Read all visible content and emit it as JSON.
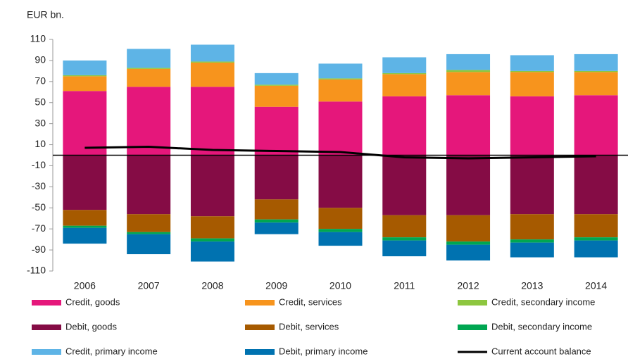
{
  "chart_data": {
    "type": "bar",
    "stacked": true,
    "y_axis_label": "EUR bn.",
    "categories": [
      "2006",
      "2007",
      "2008",
      "2009",
      "2010",
      "2011",
      "2012",
      "2013",
      "2014"
    ],
    "ylim": [
      -110,
      110
    ],
    "yticks": [
      110,
      90,
      70,
      50,
      30,
      10,
      -10,
      -30,
      -50,
      -70,
      -90,
      -110
    ],
    "grid": false,
    "series": [
      {
        "name": "Credit, goods",
        "color": "#e5177b",
        "values": [
          61,
          65,
          65,
          46,
          51,
          56,
          57,
          56,
          57
        ]
      },
      {
        "name": "Credit, services",
        "color": "#f7941d",
        "values": [
          14,
          17,
          23,
          20,
          21,
          21,
          22,
          23,
          22
        ]
      },
      {
        "name": "Credit, secondary income",
        "color": "#8dc63f",
        "values": [
          1,
          1,
          1,
          1,
          1,
          1,
          2,
          1,
          1
        ]
      },
      {
        "name": "Debit, goods",
        "color": "#850c45",
        "values": [
          -52,
          -56,
          -58,
          -42,
          -50,
          -57,
          -57,
          -56,
          -56
        ]
      },
      {
        "name": "Debit, services",
        "color": "#a65a00",
        "values": [
          -15,
          -17,
          -21,
          -19,
          -20,
          -21,
          -25,
          -24,
          -22
        ]
      },
      {
        "name": "Debit, secondary income",
        "color": "#00a651",
        "values": [
          -2,
          -2,
          -3,
          -3,
          -3,
          -3,
          -3,
          -3,
          -3
        ]
      },
      {
        "name": "Credit, primary income",
        "color": "#5eb4e6",
        "values": [
          14,
          18,
          16,
          11,
          14,
          15,
          15,
          15,
          16
        ]
      },
      {
        "name": "Debit, primary income",
        "color": "#0072b0",
        "values": [
          -15,
          -19,
          -19,
          -11,
          -13,
          -15,
          -15,
          -14,
          -16
        ]
      },
      {
        "name": "Current account balance",
        "color": "#000000",
        "type": "line",
        "values": [
          7,
          8,
          5,
          4,
          3,
          -2,
          -3,
          -2,
          -1
        ]
      }
    ]
  }
}
